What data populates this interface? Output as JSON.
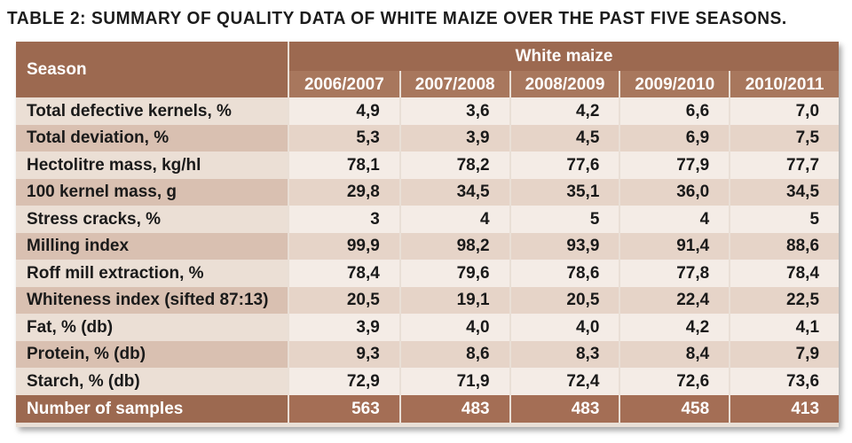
{
  "caption": "TABLE 2: SUMMARY OF QUALITY DATA OF WHITE MAIZE OVER THE PAST FIVE SEASONS.",
  "header": {
    "season_label": "Season",
    "group_label": "White maize",
    "years": [
      "2006/2007",
      "2007/2008",
      "2008/2009",
      "2009/2010",
      "2010/2011"
    ]
  },
  "rows": [
    {
      "label": "Total defective kernels, %",
      "values": [
        "4,9",
        "3,6",
        "4,2",
        "6,6",
        "7,0"
      ]
    },
    {
      "label": "Total deviation, %",
      "values": [
        "5,3",
        "3,9",
        "4,5",
        "6,9",
        "7,5"
      ]
    },
    {
      "label": "Hectolitre mass, kg/hl",
      "values": [
        "78,1",
        "78,2",
        "77,6",
        "77,9",
        "77,7"
      ]
    },
    {
      "label": "100 kernel mass, g",
      "values": [
        "29,8",
        "34,5",
        "35,1",
        "36,0",
        "34,5"
      ]
    },
    {
      "label": "Stress cracks, %",
      "values": [
        "3",
        "4",
        "5",
        "4",
        "5"
      ]
    },
    {
      "label": "Milling index",
      "values": [
        "99,9",
        "98,2",
        "93,9",
        "91,4",
        "88,6"
      ]
    },
    {
      "label": "Roff mill extraction, %",
      "values": [
        "78,4",
        "79,6",
        "78,6",
        "77,8",
        "78,4"
      ]
    },
    {
      "label": "Whiteness index (sifted 87:13)",
      "values": [
        "20,5",
        "19,1",
        "20,5",
        "22,4",
        "22,5"
      ]
    },
    {
      "label": "Fat, % (db)",
      "values": [
        "3,9",
        "4,0",
        "4,0",
        "4,2",
        "4,1"
      ]
    },
    {
      "label": "Protein, % (db)",
      "values": [
        "9,3",
        "8,6",
        "8,3",
        "8,4",
        "7,9"
      ]
    },
    {
      "label": "Starch, % (db)",
      "values": [
        "72,9",
        "71,9",
        "72,4",
        "72,6",
        "73,6"
      ]
    }
  ],
  "total_row": {
    "label": "Number of samples",
    "values": [
      "563",
      "483",
      "483",
      "458",
      "413"
    ]
  },
  "colors": {
    "header": "#9c6950",
    "row_dark": "#d9c0b1",
    "row_light": "#ebdfd5",
    "text": "#1a1a1a"
  }
}
